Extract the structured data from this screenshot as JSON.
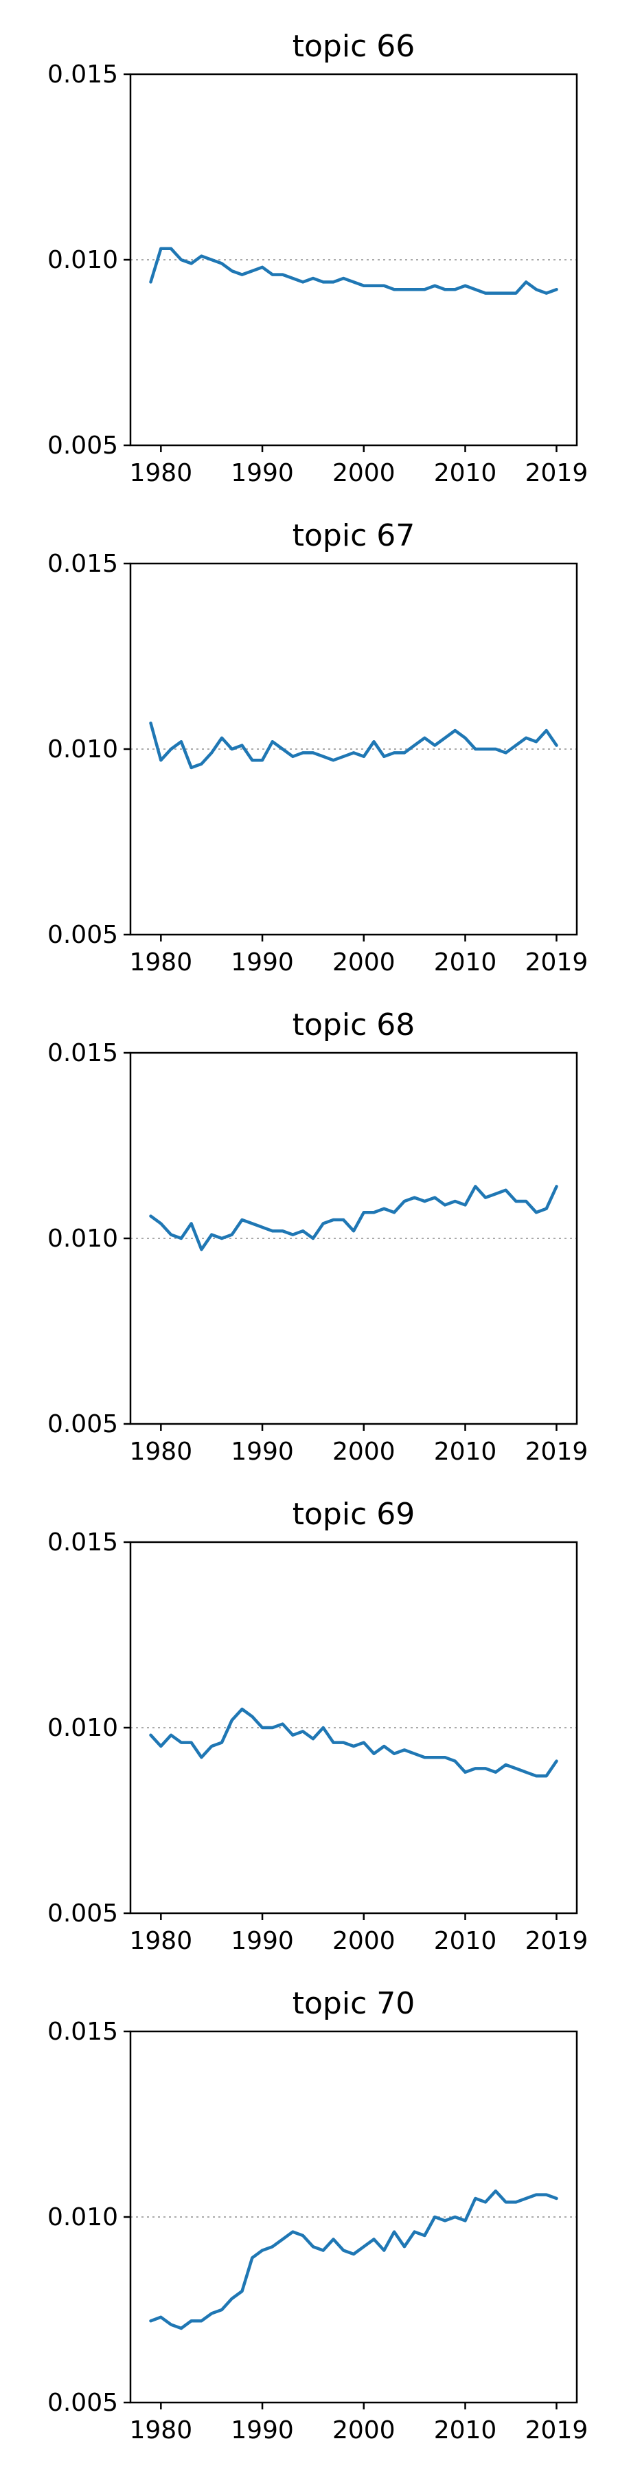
{
  "colors": {
    "line": "#1f77b4",
    "reference": "#aaaaaa",
    "axes": "#000000"
  },
  "chart_data": [
    {
      "type": "line",
      "title": "topic 66",
      "xlabel": "",
      "ylabel": "",
      "xlim": [
        1977,
        2021
      ],
      "ylim": [
        0.005,
        0.015
      ],
      "xticks": [
        1980,
        1990,
        2000,
        2010,
        2019
      ],
      "yticks": [
        "0.005",
        "0.010",
        "0.015"
      ],
      "reference_line": 0.01,
      "grid": false,
      "series": [
        {
          "x": [
            1979,
            1980,
            1981,
            1982,
            1983,
            1984,
            1985,
            1986,
            1987,
            1988,
            1989,
            1990,
            1991,
            1992,
            1993,
            1994,
            1995,
            1996,
            1997,
            1998,
            1999,
            2000,
            2001,
            2002,
            2003,
            2004,
            2005,
            2006,
            2007,
            2008,
            2009,
            2010,
            2011,
            2012,
            2013,
            2014,
            2015,
            2016,
            2017,
            2018,
            2019
          ],
          "values": [
            0.0094,
            0.0103,
            0.0103,
            0.01,
            0.0099,
            0.0101,
            0.01,
            0.0099,
            0.0097,
            0.0096,
            0.0097,
            0.0098,
            0.0096,
            0.0096,
            0.0095,
            0.0094,
            0.0095,
            0.0094,
            0.0094,
            0.0095,
            0.0094,
            0.0093,
            0.0093,
            0.0093,
            0.0092,
            0.0092,
            0.0092,
            0.0092,
            0.0093,
            0.0092,
            0.0092,
            0.0093,
            0.0092,
            0.0091,
            0.0091,
            0.0091,
            0.0091,
            0.0094,
            0.0092,
            0.0091,
            0.0092
          ]
        }
      ]
    },
    {
      "type": "line",
      "title": "topic 67",
      "xlabel": "",
      "ylabel": "",
      "xlim": [
        1977,
        2021
      ],
      "ylim": [
        0.005,
        0.015
      ],
      "xticks": [
        1980,
        1990,
        2000,
        2010,
        2019
      ],
      "yticks": [
        "0.005",
        "0.010",
        "0.015"
      ],
      "reference_line": 0.01,
      "grid": false,
      "series": [
        {
          "x": [
            1979,
            1980,
            1981,
            1982,
            1983,
            1984,
            1985,
            1986,
            1987,
            1988,
            1989,
            1990,
            1991,
            1992,
            1993,
            1994,
            1995,
            1996,
            1997,
            1998,
            1999,
            2000,
            2001,
            2002,
            2003,
            2004,
            2005,
            2006,
            2007,
            2008,
            2009,
            2010,
            2011,
            2012,
            2013,
            2014,
            2015,
            2016,
            2017,
            2018,
            2019
          ],
          "values": [
            0.0107,
            0.0097,
            0.01,
            0.0102,
            0.0095,
            0.0096,
            0.0099,
            0.0103,
            0.01,
            0.0101,
            0.0097,
            0.0097,
            0.0102,
            0.01,
            0.0098,
            0.0099,
            0.0099,
            0.0098,
            0.0097,
            0.0098,
            0.0099,
            0.0098,
            0.0102,
            0.0098,
            0.0099,
            0.0099,
            0.0101,
            0.0103,
            0.0101,
            0.0103,
            0.0105,
            0.0103,
            0.01,
            0.01,
            0.01,
            0.0099,
            0.0101,
            0.0103,
            0.0102,
            0.0105,
            0.0101
          ]
        }
      ]
    },
    {
      "type": "line",
      "title": "topic 68",
      "xlabel": "",
      "ylabel": "",
      "xlim": [
        1977,
        2021
      ],
      "ylim": [
        0.005,
        0.015
      ],
      "xticks": [
        1980,
        1990,
        2000,
        2010,
        2019
      ],
      "yticks": [
        "0.005",
        "0.010",
        "0.015"
      ],
      "reference_line": 0.01,
      "grid": false,
      "series": [
        {
          "x": [
            1979,
            1980,
            1981,
            1982,
            1983,
            1984,
            1985,
            1986,
            1987,
            1988,
            1989,
            1990,
            1991,
            1992,
            1993,
            1994,
            1995,
            1996,
            1997,
            1998,
            1999,
            2000,
            2001,
            2002,
            2003,
            2004,
            2005,
            2006,
            2007,
            2008,
            2009,
            2010,
            2011,
            2012,
            2013,
            2014,
            2015,
            2016,
            2017,
            2018,
            2019
          ],
          "values": [
            0.0106,
            0.0104,
            0.0101,
            0.01,
            0.0104,
            0.0097,
            0.0101,
            0.01,
            0.0101,
            0.0105,
            0.0104,
            0.0103,
            0.0102,
            0.0102,
            0.0101,
            0.0102,
            0.01,
            0.0104,
            0.0105,
            0.0105,
            0.0102,
            0.0107,
            0.0107,
            0.0108,
            0.0107,
            0.011,
            0.0111,
            0.011,
            0.0111,
            0.0109,
            0.011,
            0.0109,
            0.0114,
            0.0111,
            0.0112,
            0.0113,
            0.011,
            0.011,
            0.0107,
            0.0108,
            0.0114
          ]
        }
      ]
    },
    {
      "type": "line",
      "title": "topic 69",
      "xlabel": "",
      "ylabel": "",
      "xlim": [
        1977,
        2021
      ],
      "ylim": [
        0.005,
        0.015
      ],
      "xticks": [
        1980,
        1990,
        2000,
        2010,
        2019
      ],
      "yticks": [
        "0.005",
        "0.010",
        "0.015"
      ],
      "reference_line": 0.01,
      "grid": false,
      "series": [
        {
          "x": [
            1979,
            1980,
            1981,
            1982,
            1983,
            1984,
            1985,
            1986,
            1987,
            1988,
            1989,
            1990,
            1991,
            1992,
            1993,
            1994,
            1995,
            1996,
            1997,
            1998,
            1999,
            2000,
            2001,
            2002,
            2003,
            2004,
            2005,
            2006,
            2007,
            2008,
            2009,
            2010,
            2011,
            2012,
            2013,
            2014,
            2015,
            2016,
            2017,
            2018,
            2019
          ],
          "values": [
            0.0098,
            0.0095,
            0.0098,
            0.0096,
            0.0096,
            0.0092,
            0.0095,
            0.0096,
            0.0102,
            0.0105,
            0.0103,
            0.01,
            0.01,
            0.0101,
            0.0098,
            0.0099,
            0.0097,
            0.01,
            0.0096,
            0.0096,
            0.0095,
            0.0096,
            0.0093,
            0.0095,
            0.0093,
            0.0094,
            0.0093,
            0.0092,
            0.0092,
            0.0092,
            0.0091,
            0.0088,
            0.0089,
            0.0089,
            0.0088,
            0.009,
            0.0089,
            0.0088,
            0.0087,
            0.0087,
            0.0091
          ]
        }
      ]
    },
    {
      "type": "line",
      "title": "topic 70",
      "xlabel": "",
      "ylabel": "",
      "xlim": [
        1977,
        2021
      ],
      "ylim": [
        0.005,
        0.015
      ],
      "xticks": [
        1980,
        1990,
        2000,
        2010,
        2019
      ],
      "yticks": [
        "0.005",
        "0.010",
        "0.015"
      ],
      "reference_line": 0.01,
      "grid": false,
      "series": [
        {
          "x": [
            1979,
            1980,
            1981,
            1982,
            1983,
            1984,
            1985,
            1986,
            1987,
            1988,
            1989,
            1990,
            1991,
            1992,
            1993,
            1994,
            1995,
            1996,
            1997,
            1998,
            1999,
            2000,
            2001,
            2002,
            2003,
            2004,
            2005,
            2006,
            2007,
            2008,
            2009,
            2010,
            2011,
            2012,
            2013,
            2014,
            2015,
            2016,
            2017,
            2018,
            2019
          ],
          "values": [
            0.0072,
            0.0073,
            0.0071,
            0.007,
            0.0072,
            0.0072,
            0.0074,
            0.0075,
            0.0078,
            0.008,
            0.0089,
            0.0091,
            0.0092,
            0.0094,
            0.0096,
            0.0095,
            0.0092,
            0.0091,
            0.0094,
            0.0091,
            0.009,
            0.0092,
            0.0094,
            0.0091,
            0.0096,
            0.0092,
            0.0096,
            0.0095,
            0.01,
            0.0099,
            0.01,
            0.0099,
            0.0105,
            0.0104,
            0.0107,
            0.0104,
            0.0104,
            0.0105,
            0.0106,
            0.0106,
            0.0105
          ]
        }
      ]
    }
  ]
}
